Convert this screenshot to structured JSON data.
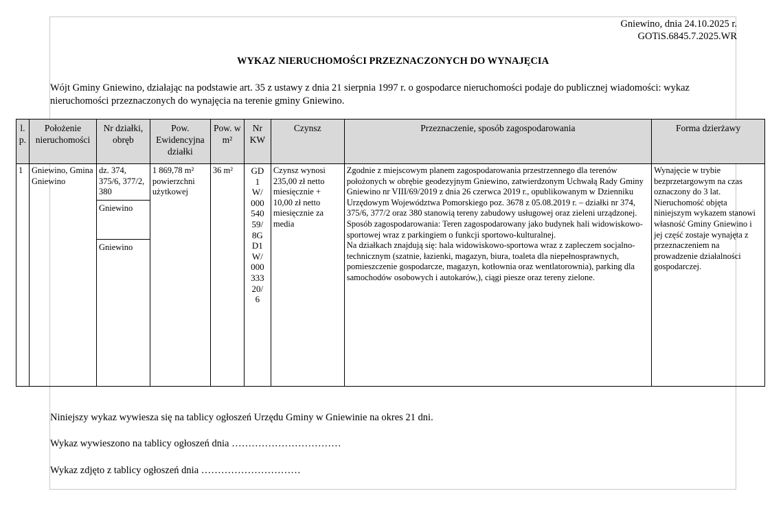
{
  "header": {
    "place_date": "Gniewino, dnia 24.10.2025 r.",
    "reference": "GOTiS.6845.7.2025.WR",
    "title": "WYKAZ NIERUCHOMOŚCI PRZEZNACZONYCH DO WYNAJĘCIA",
    "intro": "Wójt Gminy Gniewino, działając na podstawie art. 35 z ustawy z dnia 21 sierpnia 1997 r. o gospodarce nieruchomości podaje do publicznej wiadomości: wykaz nieruchomości przeznaczonych do wynajęcia na terenie gminy Gniewino."
  },
  "table": {
    "headers": [
      "l. p.",
      "Położenie nieruchomości",
      "Nr działki, obręb",
      "Pow. Ewidencyjna działki",
      "Pow. w m²",
      "Nr KW",
      "Czynsz",
      "Przeznaczenie, sposób zagospodarowania",
      "Forma dzierżawy"
    ],
    "rows": [
      {
        "lp": "1",
        "location": "Gniewino, Gmina Gniewino",
        "plots": [
          "dz. 374, 375/6, 377/2, 380",
          "Gniewino",
          "Gniewino"
        ],
        "area": "1 869,78 m² powierzchni użytkowej",
        "area_m2": "36 m²",
        "kw": "GD1W/00054059/8GD1W/00033320/6",
        "rent": "Czynsz wynosi 235,00 zł netto miesięcznie + 10,00 zł netto miesięcznie za media",
        "purpose": [
          "Zgodnie z miejscowym planem zagospodarowania przestrzennego dla terenów położonych w obrębie geodezyjnym Gniewino, zatwierdzonym Uchwałą Rady Gminy Gniewino nr VIII/69/2019 z dnia 26 czerwca 2019 r., opublikowanym w Dzienniku Urzędowym Województwa Pomorskiego poz. 3678 z 05.08.2019 r. – działki nr 374, 375/6, 377/2 oraz 380 stanowią tereny zabudowy usługowej oraz zieleni urządzonej.",
          "Sposób zagospodarowania: Teren zagospodarowany jako budynek hali widowiskowo-sportowej wraz z parkingiem o funkcji sportowo-kulturalnej.",
          "Na działkach znajdują się: hala widowiskowo-sportowa wraz z zapleczem socjalno-technicznym (szatnie, łazienki, magazyn, biura, toaleta dla niepełnosprawnych, pomieszczenie gospodarcze, magazyn, kotłownia oraz wentlatorownia), parking dla samochodów osobowych i autokarów,), ciągi piesze oraz tereny zielone."
        ],
        "lease_form": "Wynajęcie w trybie bezprzetargowym na czas oznaczony do 3 lat. Nieruchomość objęta niniejszym wykazem stanowi własność Gminy Gniewino i jej część zostaje wynajęta z przeznaczeniem na prowadzenie działalności gospodarczej."
      }
    ]
  },
  "footer": {
    "notice": "Niniejszy wykaz wywiesza się na tablicy ogłoszeń Urzędu Gminy w Gniewinie na okres 21 dni.",
    "posted": "Wykaz wywieszono na tablicy ogłoszeń dnia ……………………………",
    "removed": "Wykaz zdjęto z tablicy ogłoszeń dnia …………………………"
  }
}
